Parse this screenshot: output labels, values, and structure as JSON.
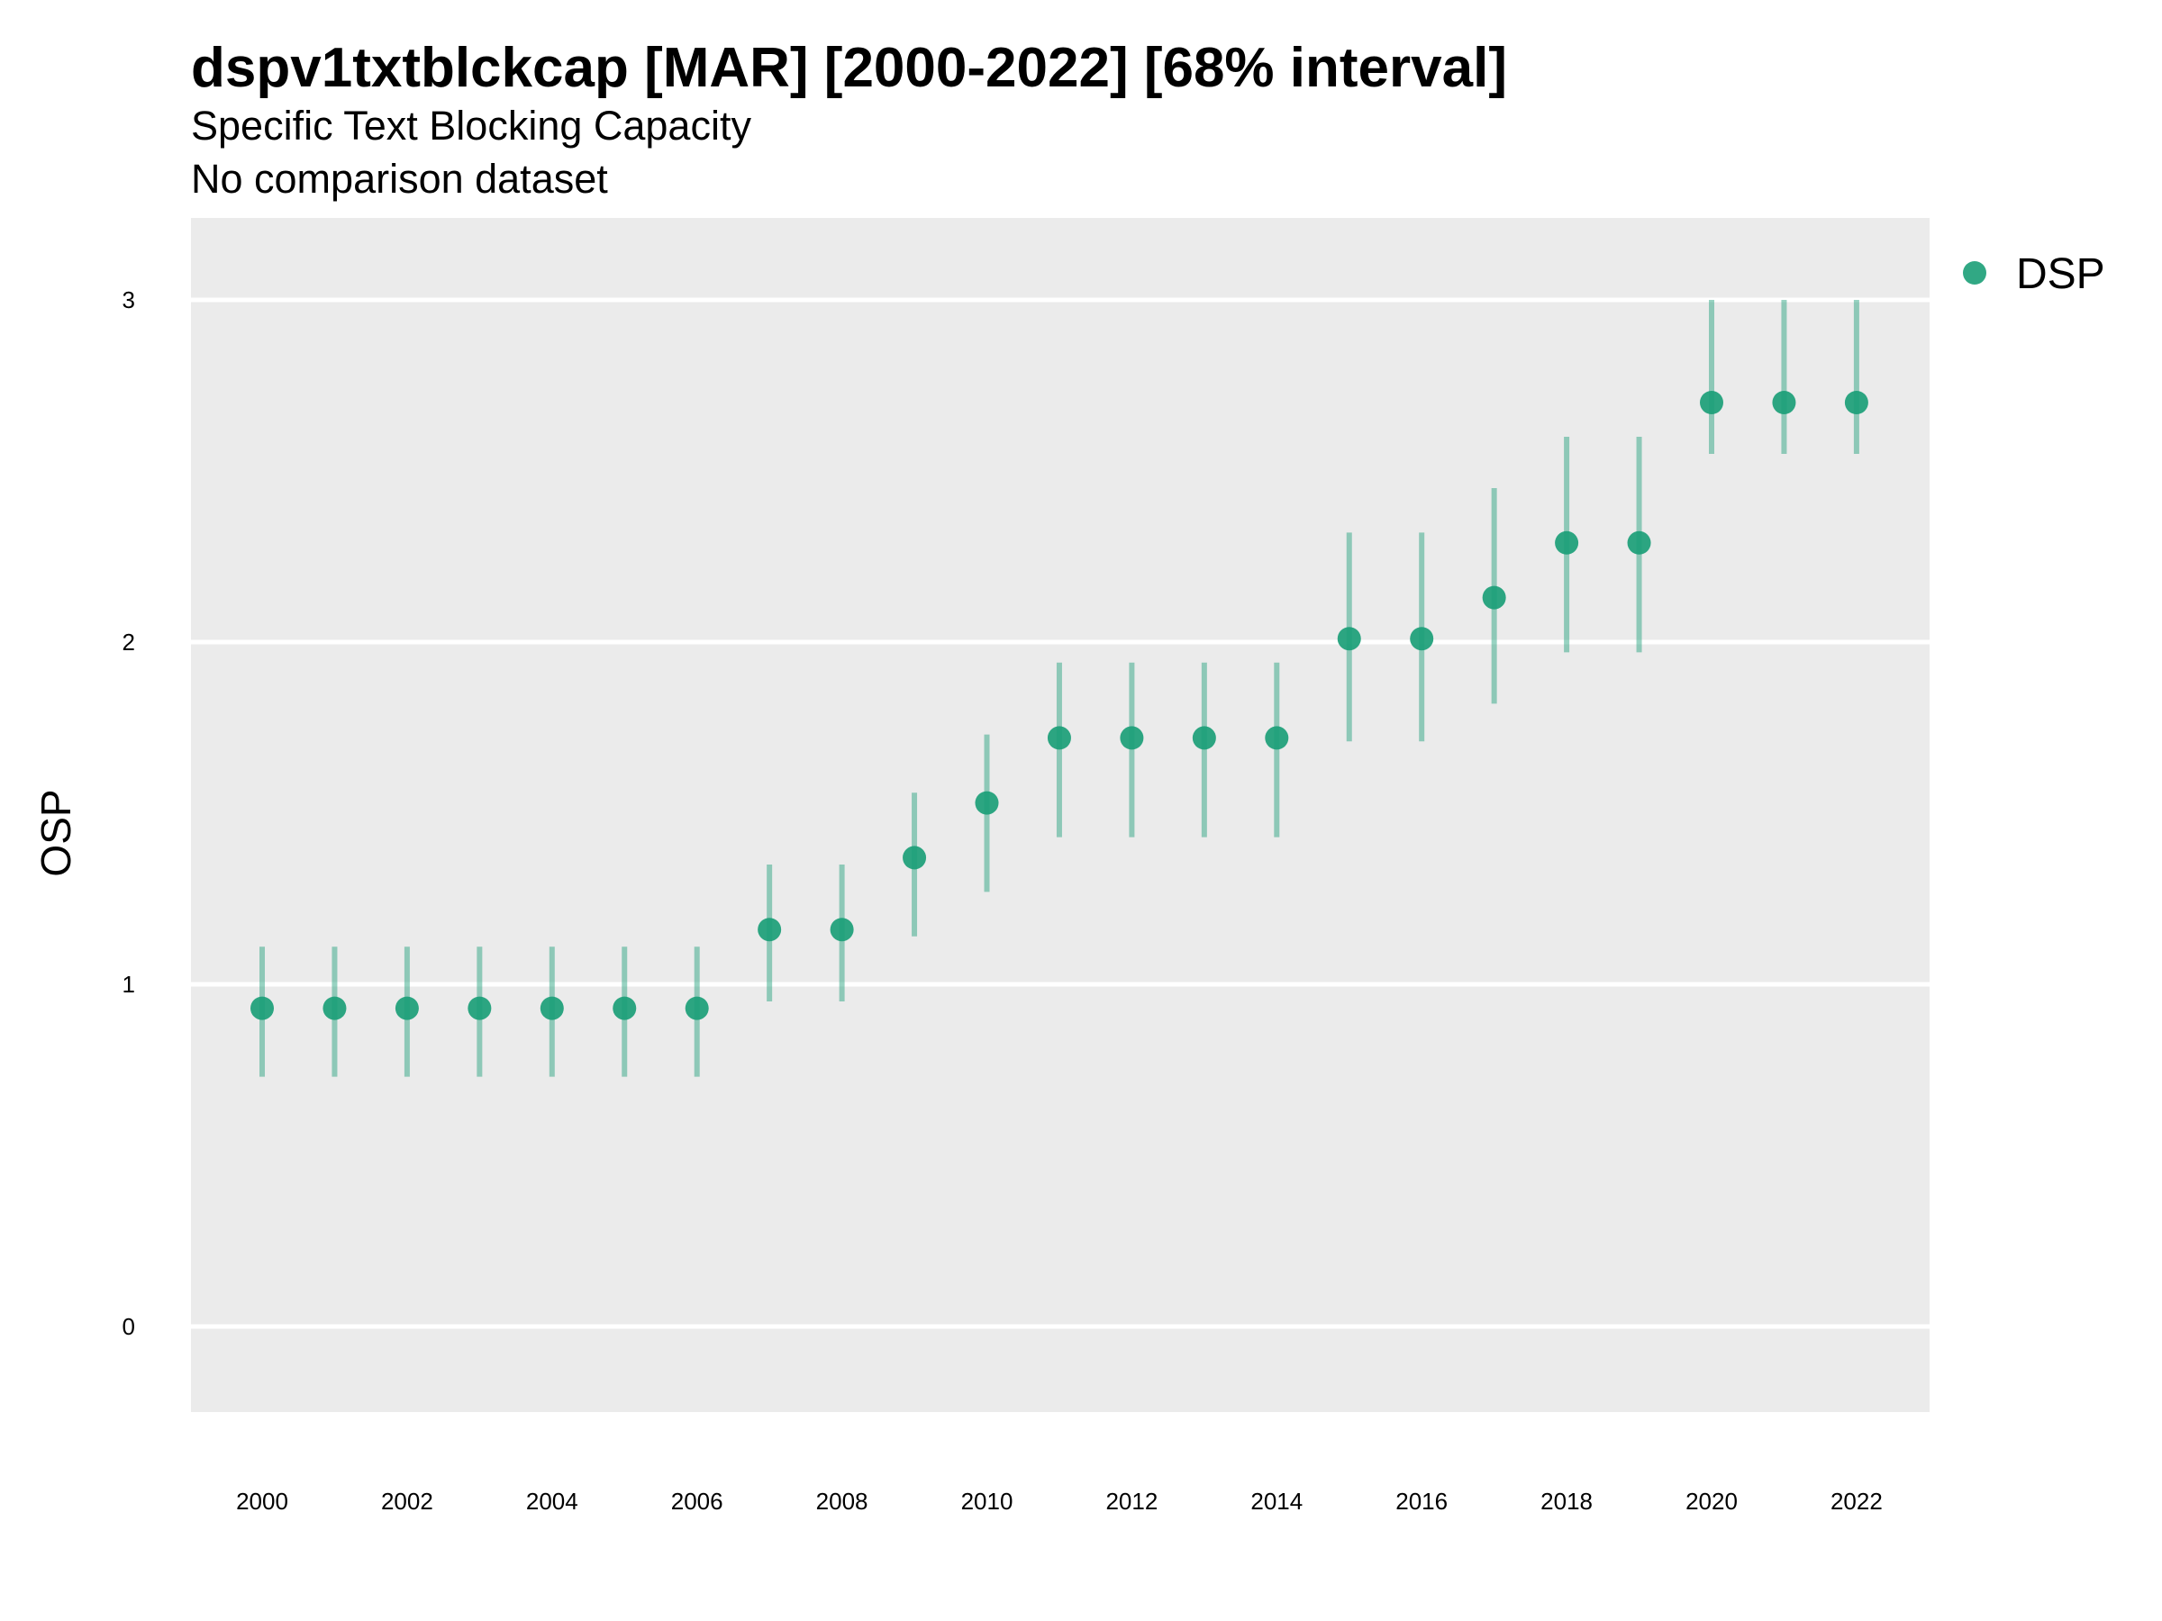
{
  "chart_data": {
    "type": "scatter",
    "title": "dspv1txtblckcap [MAR] [2000-2022] [68% interval]",
    "subtitle": "Specific Text Blocking Capacity",
    "caption_line": "No comparison dataset",
    "xlabel": "",
    "ylabel": "OSP",
    "ylim": [
      -0.25,
      3.25
    ],
    "y_ticks": [
      0,
      1,
      2,
      3
    ],
    "x_ticks": [
      "2000",
      "2002",
      "2004",
      "2006",
      "2008",
      "2010",
      "2012",
      "2014",
      "2016",
      "2018",
      "2020",
      "2022"
    ],
    "grid": true,
    "legend_position": "right",
    "series": [
      {
        "name": "DSP",
        "color": "#1b9e77",
        "x": [
          2000,
          2001,
          2002,
          2003,
          2004,
          2005,
          2006,
          2007,
          2008,
          2009,
          2010,
          2011,
          2012,
          2013,
          2014,
          2015,
          2016,
          2017,
          2018,
          2019,
          2020,
          2021,
          2022
        ],
        "y": [
          0.93,
          0.93,
          0.93,
          0.93,
          0.93,
          0.93,
          0.93,
          1.16,
          1.16,
          1.37,
          1.53,
          1.72,
          1.72,
          1.72,
          1.72,
          2.01,
          2.01,
          2.13,
          2.29,
          2.29,
          2.7,
          2.7,
          2.7
        ],
        "lower": [
          0.73,
          0.73,
          0.73,
          0.73,
          0.73,
          0.73,
          0.73,
          0.95,
          0.95,
          1.14,
          1.27,
          1.43,
          1.43,
          1.43,
          1.43,
          1.71,
          1.71,
          1.82,
          1.97,
          1.97,
          2.55,
          2.55,
          2.55
        ],
        "upper": [
          1.11,
          1.11,
          1.11,
          1.11,
          1.11,
          1.11,
          1.11,
          1.35,
          1.35,
          1.56,
          1.73,
          1.94,
          1.94,
          1.94,
          1.94,
          2.32,
          2.32,
          2.45,
          2.6,
          2.6,
          3.0,
          3.0,
          3.0
        ]
      }
    ]
  }
}
